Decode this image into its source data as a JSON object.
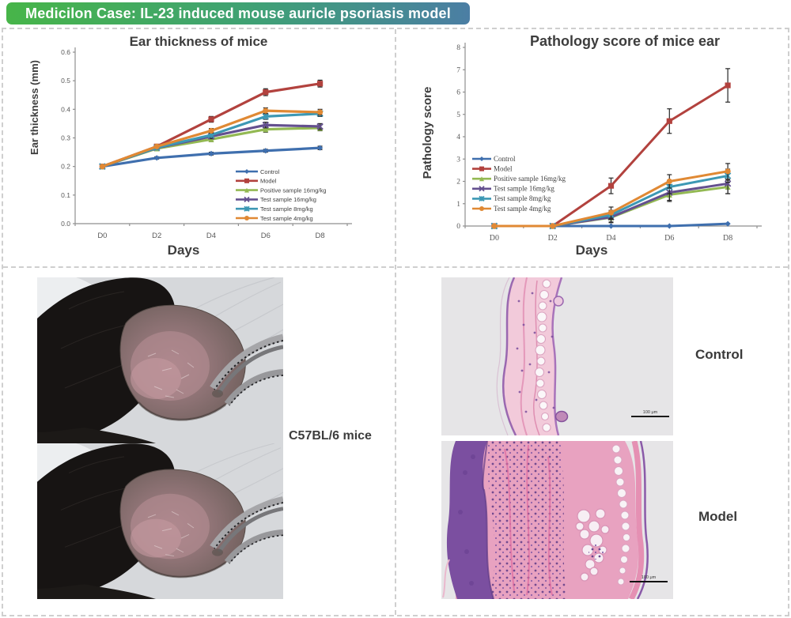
{
  "header": {
    "title": "Medicilon Case: IL-23 induced mouse auricle psoriasis model",
    "gradient_colors": [
      "#47B549",
      "#3FA076",
      "#4B7EA4"
    ]
  },
  "chart_data": [
    {
      "type": "line",
      "title": "Ear thickness of mice",
      "xlabel": "Days",
      "ylabel": "Ear thickness (mm)",
      "categories": [
        "D0",
        "D2",
        "D4",
        "D6",
        "D8"
      ],
      "ylim": [
        0,
        0.6
      ],
      "ytick_step": 0.1,
      "ytick_decimals": 1,
      "grid": false,
      "legend_position": "inside-bottom-right",
      "series": [
        {
          "name": "Control",
          "color": "#3F6FAE",
          "marker": "diamond",
          "values": [
            0.2,
            0.23,
            0.245,
            0.255,
            0.265
          ],
          "errors": [
            0,
            0.004,
            0.005,
            0.005,
            0.006
          ]
        },
        {
          "name": "Model",
          "color": "#B2423E",
          "marker": "square",
          "values": [
            0.2,
            0.27,
            0.365,
            0.46,
            0.49
          ],
          "errors": [
            0,
            0.005,
            0.01,
            0.012,
            0.012
          ]
        },
        {
          "name": "Positive sample 16mg/kg",
          "color": "#93B953",
          "marker": "triangle",
          "values": [
            0.2,
            0.263,
            0.295,
            0.33,
            0.335
          ],
          "errors": [
            0,
            0.005,
            0.008,
            0.01,
            0.01
          ]
        },
        {
          "name": "Test sample 16mg/kg",
          "color": "#64508F",
          "marker": "x",
          "values": [
            0.2,
            0.265,
            0.305,
            0.345,
            0.34
          ],
          "errors": [
            0,
            0.005,
            0.008,
            0.01,
            0.01
          ]
        },
        {
          "name": "Test sample 8mg/kg",
          "color": "#3D98B4",
          "marker": "star",
          "values": [
            0.2,
            0.266,
            0.31,
            0.375,
            0.385
          ],
          "errors": [
            0,
            0.005,
            0.008,
            0.01,
            0.01
          ]
        },
        {
          "name": "Test sample 4mg/kg",
          "color": "#E08934",
          "marker": "circle",
          "values": [
            0.2,
            0.27,
            0.325,
            0.395,
            0.39
          ],
          "errors": [
            0,
            0.005,
            0.008,
            0.01,
            0.01
          ]
        }
      ]
    },
    {
      "type": "line",
      "title": "Pathology score of mice ear",
      "xlabel": "Days",
      "ylabel": "Pathology score",
      "categories": [
        "D0",
        "D2",
        "D4",
        "D6",
        "D8"
      ],
      "ylim": [
        0,
        8
      ],
      "ytick_step": 1,
      "ytick_decimals": 0,
      "grid": false,
      "legend_position": "inside-left-middle",
      "series": [
        {
          "name": "Control",
          "color": "#3F6FAE",
          "marker": "diamond",
          "values": [
            0,
            0,
            0,
            0,
            0.1
          ],
          "errors": [
            0,
            0,
            0,
            0,
            0
          ]
        },
        {
          "name": "Model",
          "color": "#B2423E",
          "marker": "square",
          "values": [
            0,
            0,
            1.8,
            4.7,
            6.3
          ],
          "errors": [
            0,
            0,
            0.35,
            0.55,
            0.75
          ]
        },
        {
          "name": "Positive sample 16mg/kg",
          "color": "#93B953",
          "marker": "triangle",
          "values": [
            0,
            0,
            0.38,
            1.4,
            1.75
          ],
          "errors": [
            0,
            0,
            0.2,
            0.3,
            0.3
          ]
        },
        {
          "name": "Test sample 16mg/kg",
          "color": "#64508F",
          "marker": "x",
          "values": [
            0,
            0,
            0.4,
            1.5,
            1.9
          ],
          "errors": [
            0,
            0,
            0.25,
            0.35,
            0.45
          ]
        },
        {
          "name": "Test sample 8mg/kg",
          "color": "#3D98B4",
          "marker": "star",
          "values": [
            0,
            0,
            0.5,
            1.75,
            2.25
          ],
          "errors": [
            0,
            0,
            0.2,
            0.3,
            0.3
          ]
        },
        {
          "name": "Test sample 4mg/kg",
          "color": "#E08934",
          "marker": "circle",
          "values": [
            0,
            0,
            0.6,
            2.0,
            2.45
          ],
          "errors": [
            0,
            0,
            0.25,
            0.3,
            0.35
          ]
        }
      ]
    }
  ],
  "panels": {
    "mice": {
      "label": "C57BL/6 mice"
    },
    "histology": {
      "control_label": "Control",
      "model_label": "Model",
      "scale_bar_label": "100 μm"
    }
  }
}
